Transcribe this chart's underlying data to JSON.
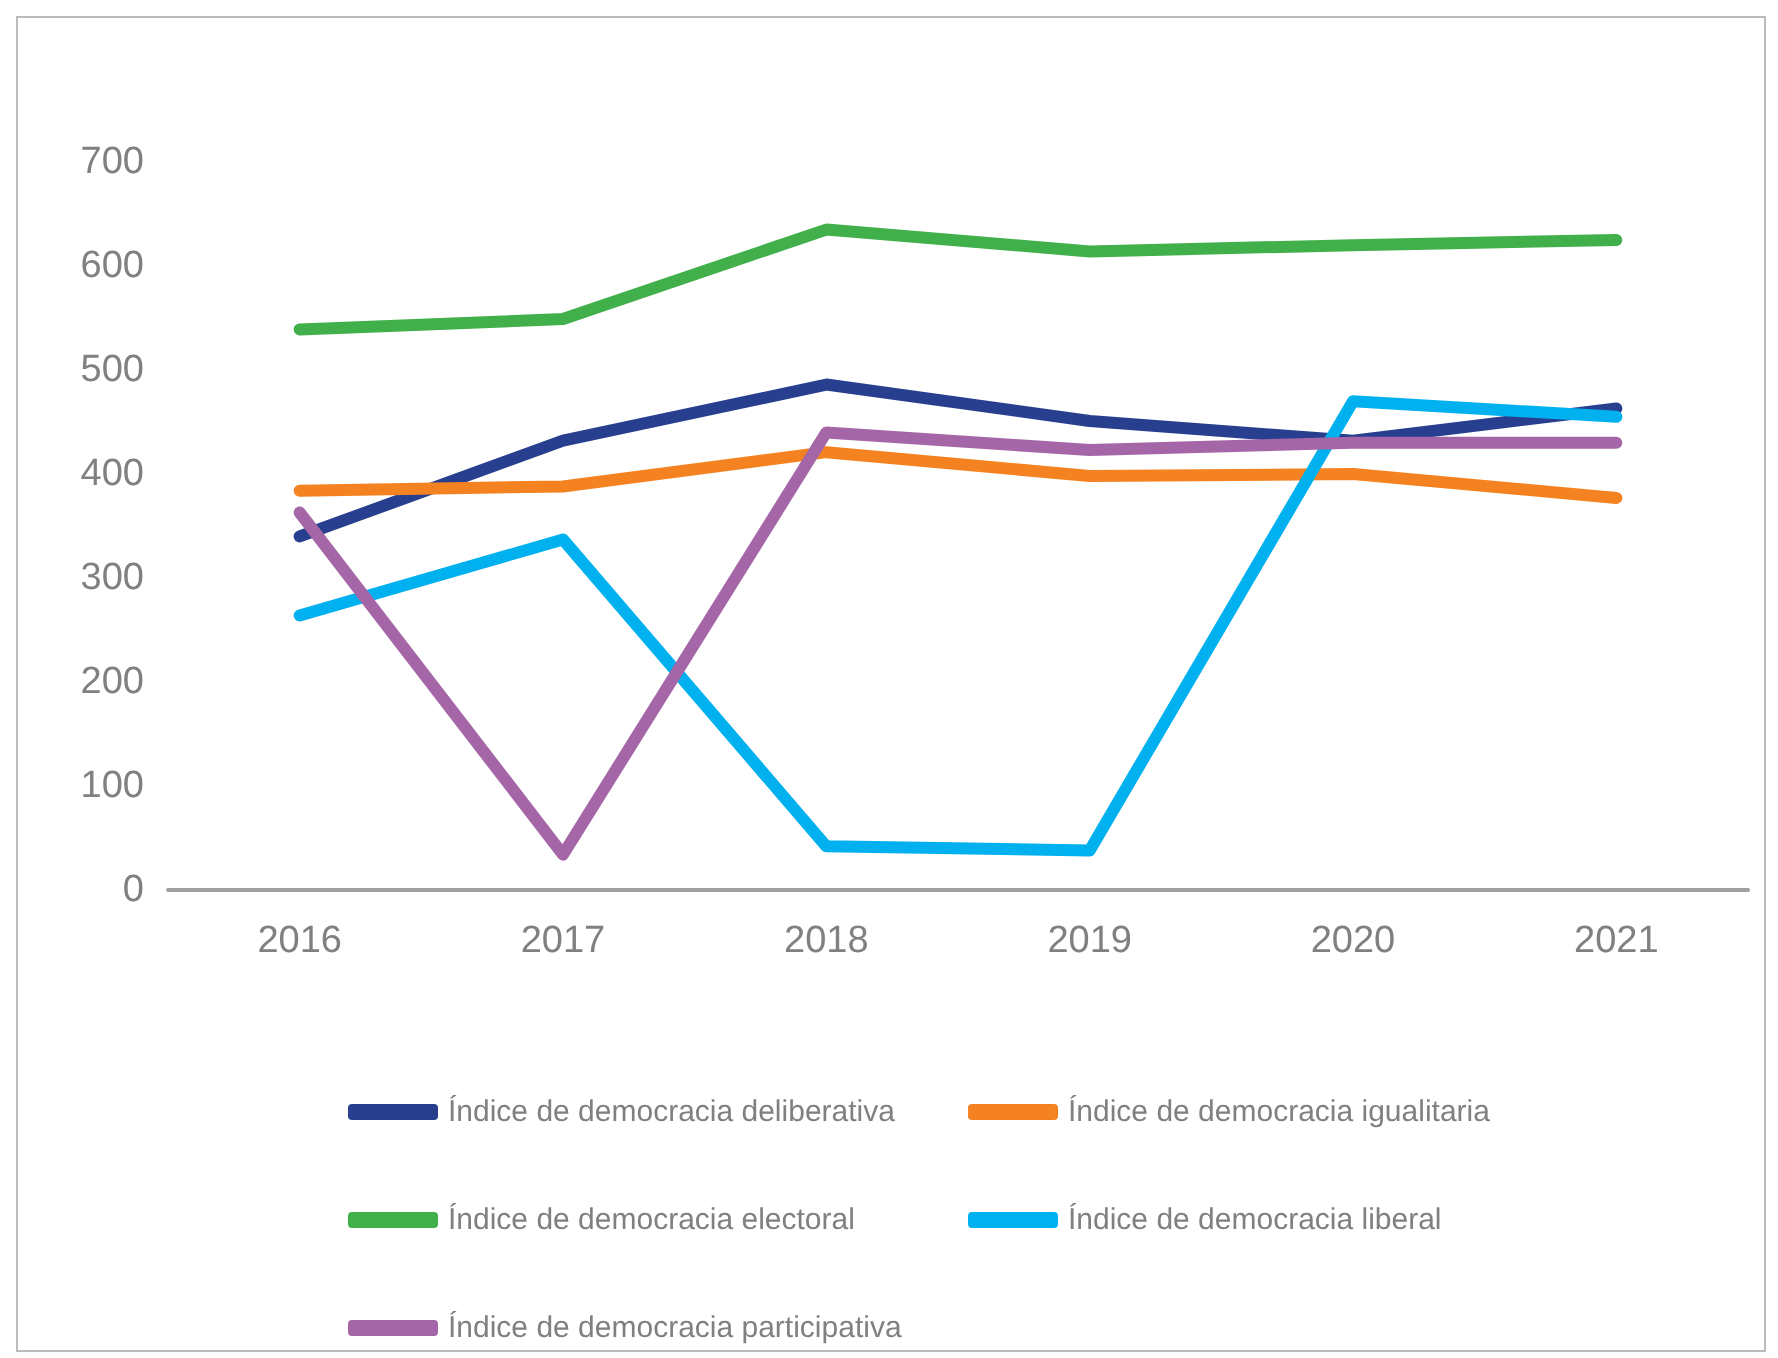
{
  "chart_data": {
    "type": "line",
    "categories": [
      "2016",
      "2017",
      "2018",
      "2019",
      "2020",
      "2021"
    ],
    "series": [
      {
        "name": "Índice de democracia deliberativa",
        "color": "#283f8f",
        "values": [
          340,
          432,
          486,
          451,
          432,
          463
        ]
      },
      {
        "name": "Índice de democracia igualitaria",
        "color": "#f58220",
        "values": [
          384,
          388,
          421,
          398,
          400,
          377
        ]
      },
      {
        "name": "Índice de democracia electoral",
        "color": "#41b04a",
        "values": [
          539,
          549,
          635,
          614,
          620,
          625
        ]
      },
      {
        "name": "Índice de democracia liberal",
        "color": "#00b0ef",
        "values": [
          264,
          337,
          42,
          38,
          470,
          455
        ]
      },
      {
        "name": "Índice de democracia participativa",
        "color": "#a566a8",
        "values": [
          363,
          34,
          440,
          423,
          430,
          430
        ]
      }
    ],
    "ylim": [
      0,
      700
    ],
    "yticks": [
      0,
      100,
      200,
      300,
      400,
      500,
      600,
      700
    ],
    "grid": false,
    "legend": "bottom",
    "marker": "none",
    "line_style": "solid"
  }
}
